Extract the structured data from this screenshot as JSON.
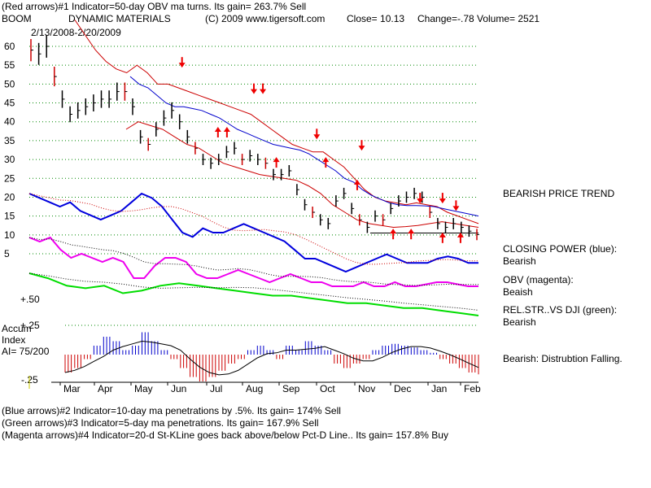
{
  "header": {
    "line1": "(Red arrows)#1 Indicator=50-day OBV ma turns. Its gain= 263.7% Sell",
    "ticker": "BOOM",
    "company": "DYNAMIC MATERIALS",
    "copyright": "(C) 2009 www.tigersoft.com",
    "close_label": "Close=  10.13",
    "change_label": "Change=-.78",
    "volume_label": "Volume=  2521",
    "date_range": "2/13/2008-2/20/2009"
  },
  "side_labels": {
    "trend": "BEARISH PRICE TREND",
    "closing_power": "CLOSING POWER (blue):",
    "closing_power_value": "Bearish",
    "obv": "OBV (magenta):",
    "obv_value": "Beaish",
    "relstr": "REL.STR..VS DJI (green):",
    "relstr_value": "Bearish",
    "accum_status": "Bearish: Distrubtion Falling."
  },
  "accum": {
    "title": "Accum",
    "subtitle": "Index",
    "ai_value": "AI= 75/200"
  },
  "footer": {
    "line1": "(Blue arrows)#2 Indicator=10-day ma penetrations by .5%. Its gain= 174% Sell",
    "line2": "(Green arrows)#3 Indicator=5-day ma penetrations. Its gain= 167.9% Sell",
    "line3": "(Magenta arrows)#4 Indicator=20-d St-KLine goes back above/below Pct-D Line.. Its gain= 157.8% Buy"
  },
  "colors": {
    "price_bars": "#000000",
    "ma": "#0000cc",
    "band": "#cc0000",
    "closing_power": "#0000dd",
    "obv": "#ee00ee",
    "relstr": "#00dd00",
    "accum_pos": "#0000cc",
    "accum_neg": "#cc0000",
    "arrow": "#ee0000",
    "grid": "#008800"
  },
  "chart_data": {
    "type": "line",
    "price_axis": {
      "ticks": [
        60,
        55,
        50,
        45,
        40,
        35,
        30,
        25,
        20,
        15,
        10,
        5
      ],
      "tick_labels": [
        "60",
        "55",
        "50",
        "45",
        "40",
        "35",
        "30",
        "25",
        "20",
        "15",
        "10",
        "5"
      ],
      "ylim": [
        5,
        60
      ]
    },
    "accum_axis": {
      "tick_labels": [
        "+.50",
        "+.25",
        "-.25"
      ]
    },
    "months": [
      "Mar",
      "Apr",
      "May",
      "Jun",
      "Jul",
      "Aug",
      "Sep",
      "Oct",
      "Nov",
      "Dec",
      "Jan",
      "Feb"
    ],
    "price": [
      59,
      58,
      60,
      52,
      46,
      42,
      43,
      44,
      45,
      46,
      46,
      48,
      48,
      44,
      36,
      34,
      38,
      41,
      43,
      40,
      36,
      33,
      30,
      29,
      30,
      32,
      33,
      30,
      31,
      30,
      29,
      26,
      26,
      27,
      22,
      18,
      16,
      14,
      13,
      19,
      21,
      17,
      14,
      12,
      15,
      14,
      17,
      19,
      20,
      21,
      20,
      16,
      13,
      12,
      13,
      12,
      11,
      10.1
    ],
    "ma50": [
      52,
      50,
      49,
      47,
      45,
      44,
      44,
      43.5,
      43,
      42,
      41,
      39.5,
      38,
      37,
      36,
      35,
      34,
      33.5,
      33,
      32.5,
      31.5,
      30,
      28.5,
      27,
      25,
      24,
      22,
      20.5,
      19.5,
      18.5,
      18,
      17.8,
      17.8,
      17.7,
      17.5,
      17,
      16.5,
      16,
      15.5,
      15
    ],
    "upper_band": [
      67,
      63,
      59,
      56,
      54,
      53,
      55,
      53,
      50,
      50,
      49,
      48,
      47,
      46,
      45,
      44,
      43,
      42,
      40,
      38,
      36,
      34,
      33,
      32,
      32,
      30,
      28,
      25,
      22,
      20,
      19,
      18.5,
      18,
      18.5,
      18,
      17.5,
      16,
      15,
      14,
      13
    ],
    "lower_band": [
      38,
      40,
      39,
      38,
      36,
      34,
      33,
      31,
      29,
      28,
      27,
      26,
      25.5,
      25,
      24.5,
      23,
      21,
      18,
      16,
      14,
      13,
      12.5,
      12,
      12.2,
      12.5,
      13,
      13.5,
      13,
      12.5,
      12
    ],
    "closing_power": [
      21,
      20,
      19,
      18,
      19,
      17,
      16,
      15,
      16,
      17,
      19,
      21,
      20,
      18,
      15,
      12,
      11,
      13,
      12,
      12,
      13,
      14,
      13,
      12,
      11,
      10,
      8,
      6,
      6,
      5,
      4,
      3,
      4,
      5,
      6,
      7,
      6,
      5,
      5,
      5,
      6,
      6.5,
      6,
      5,
      5
    ],
    "obv": [
      9,
      8,
      9,
      6,
      4,
      5,
      4,
      3,
      4,
      3,
      -1,
      -1,
      2,
      4,
      4,
      3,
      0,
      -1,
      -1,
      0,
      1,
      0,
      -1,
      -2,
      -1,
      0,
      -1,
      -2,
      -2,
      -3,
      -3,
      -3,
      -2,
      -3,
      -3,
      -2,
      -3,
      -3,
      -2.5,
      -2,
      -2,
      -2.5,
      -3,
      -3
    ],
    "relstr": [
      0.6,
      0.58,
      0.55,
      0.54,
      0.55,
      0.52,
      0.53,
      0.55,
      0.56,
      0.55,
      0.54,
      0.53,
      0.52,
      0.51,
      0.51,
      0.5,
      0.49,
      0.48,
      0.48,
      0.47,
      0.46,
      0.46,
      0.45,
      0.44,
      0.43
    ],
    "accum": [
      -0.2,
      -0.15,
      -0.05,
      0.1,
      0.2,
      0.15,
      0.05,
      0.1,
      0.25,
      0.15,
      0.05,
      -0.05,
      -0.15,
      -0.25,
      -0.3,
      -0.25,
      -0.18,
      -0.1,
      -0.05,
      0.05,
      0.1,
      0.05,
      -0.05,
      0.1,
      0.05,
      0.15,
      0.1,
      0.05,
      -0.1,
      -0.15,
      -0.1,
      -0.05,
      0.05,
      0.1,
      0.12,
      0.1,
      0.08,
      0.05,
      0.02,
      -0.05,
      -0.1,
      -0.15,
      -0.2,
      -0.22
    ],
    "red_arrows_down": [
      [
        0.34,
        55
      ],
      [
        0.5,
        48
      ],
      [
        0.52,
        48
      ],
      [
        0.64,
        36
      ],
      [
        0.74,
        33
      ],
      [
        0.87,
        19
      ],
      [
        0.92,
        19
      ],
      [
        0.95,
        17
      ]
    ],
    "red_arrows_up": [
      [
        0.42,
        38
      ],
      [
        0.44,
        38
      ],
      [
        0.55,
        30
      ],
      [
        0.66,
        30
      ],
      [
        0.73,
        24
      ],
      [
        0.81,
        11
      ],
      [
        0.85,
        11
      ],
      [
        0.92,
        10
      ],
      [
        0.96,
        10
      ]
    ],
    "grid": true
  }
}
